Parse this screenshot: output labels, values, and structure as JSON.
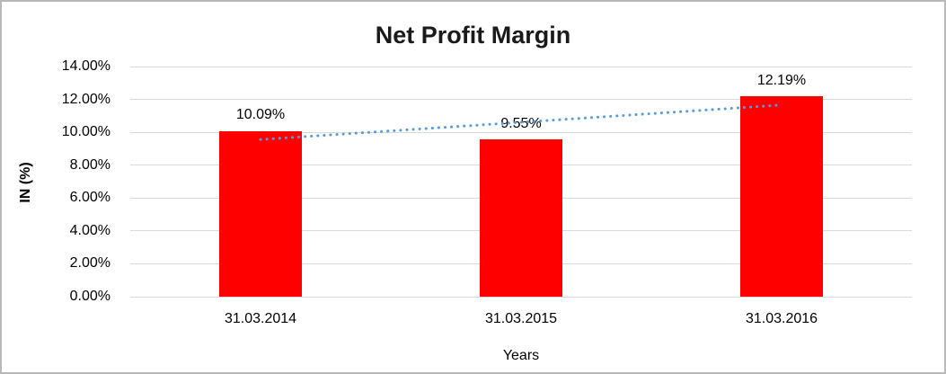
{
  "chart_data": {
    "type": "bar",
    "title": "Net Profit Margin",
    "xlabel": "Years",
    "ylabel": "IN (%)",
    "categories": [
      "31.03.2014",
      "31.03.2015",
      "31.03.2016"
    ],
    "values": [
      10.09,
      9.55,
      12.19
    ],
    "value_labels": [
      "10.09%",
      "9.55%",
      "12.19%"
    ],
    "yticks": [
      "0.00%",
      "2.00%",
      "4.00%",
      "6.00%",
      "8.00%",
      "10.00%",
      "12.00%",
      "14.00%"
    ],
    "ytick_values": [
      0,
      2,
      4,
      6,
      8,
      10,
      12,
      14
    ],
    "ylim": [
      0,
      14
    ],
    "grid": true,
    "legend_position": "none",
    "bar_color": "#ff0000",
    "gridline_color": "#d9d9d9",
    "text_color": "#000000",
    "trendline": {
      "type": "linear",
      "style": "dotted",
      "color": "#5b9bd5",
      "start_value": 9.56,
      "end_value": 11.66
    }
  }
}
